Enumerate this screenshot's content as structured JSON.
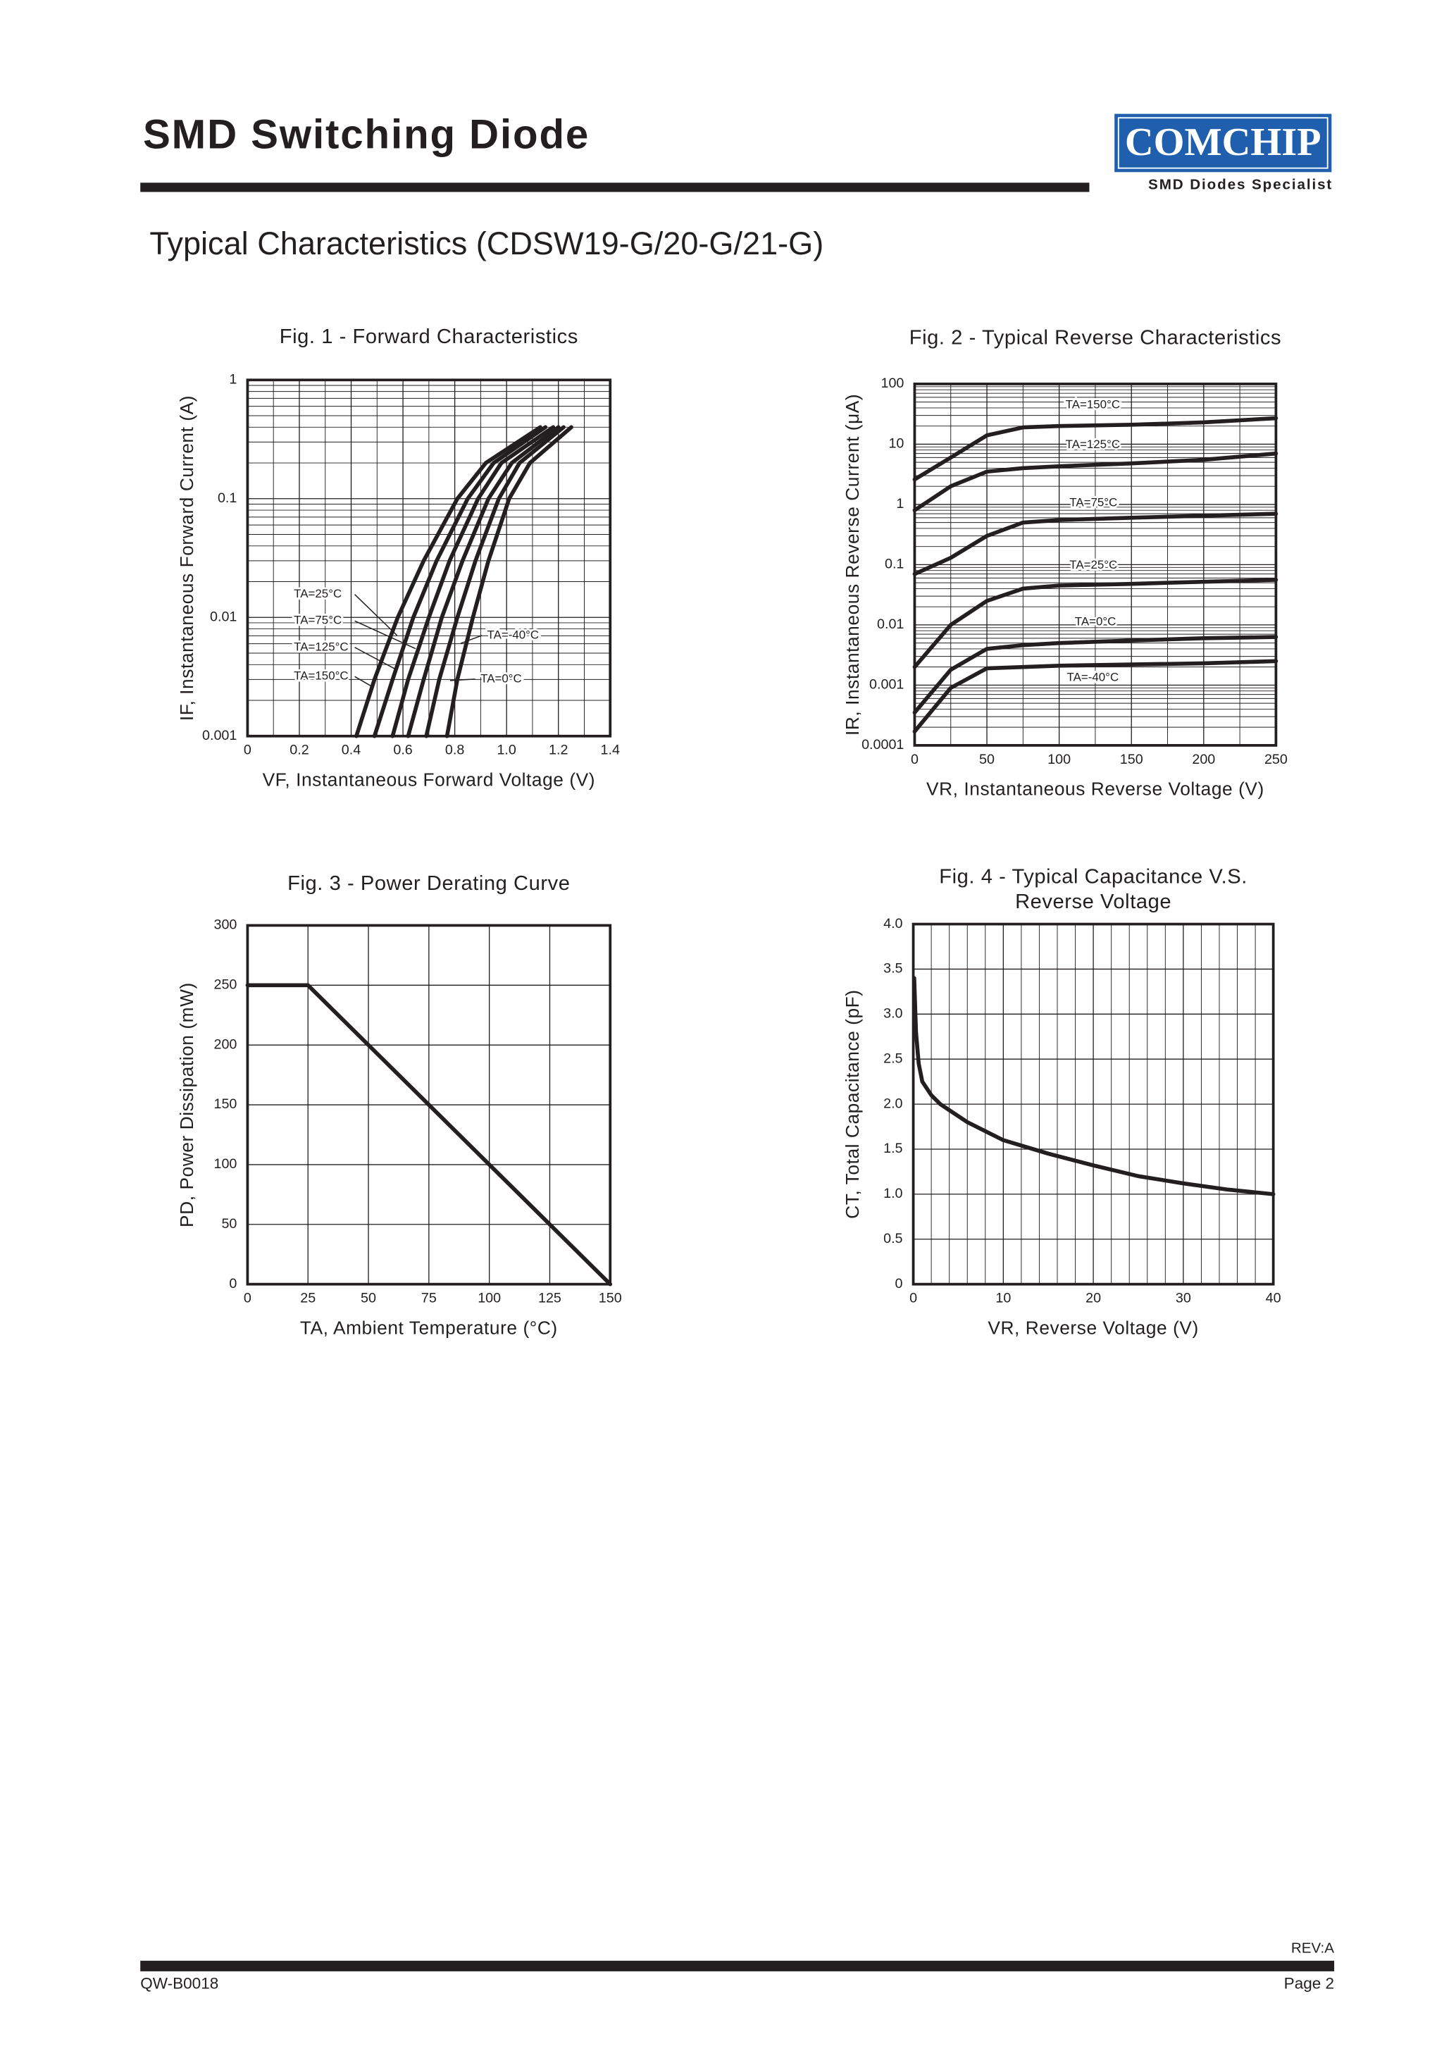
{
  "header": {
    "title": "SMD Switching Diode",
    "logo": "COMCHIP",
    "tagline": "SMD Diodes Specialist",
    "subtitle": "Typical Characteristics (CDSW19-G/20-G/21-G)"
  },
  "footer": {
    "revision": "REV:A",
    "doc_number": "QW-B0018",
    "page": "Page 2"
  },
  "chart_data": [
    {
      "type": "line",
      "title": [
        "Fig. 1 - Forward Characteristics"
      ],
      "xlabel": "VF, Instantaneous Forward Voltage (V)",
      "ylabel": "IF, Instantaneous Forward Current (A)",
      "xlim": [
        0,
        1.4
      ],
      "ylim": [
        0.001,
        1
      ],
      "ylog": true,
      "grid": true,
      "xticks": [
        0,
        0.2,
        0.4,
        0.6,
        0.8,
        {
          "value": 1,
          "label": "1.0"
        },
        1.2,
        1.4
      ],
      "yticks": [
        0.001,
        0.01,
        0.1,
        1
      ],
      "series": [
        {
          "name": "TA=25°C",
          "color": "#231f20",
          "x": [
            0.62,
            0.68,
            0.75,
            0.83,
            0.93,
            1.02,
            1.2
          ],
          "values": [
            0.001,
            0.003,
            0.01,
            0.03,
            0.1,
            0.2,
            0.4
          ]
        },
        {
          "name": "TA=75°C",
          "color": "#231f20",
          "x": [
            0.56,
            0.62,
            0.7,
            0.78,
            0.89,
            0.98,
            1.18
          ],
          "values": [
            0.001,
            0.003,
            0.01,
            0.03,
            0.1,
            0.2,
            0.4
          ]
        },
        {
          "name": "TA=125°C",
          "color": "#231f20",
          "x": [
            0.49,
            0.56,
            0.64,
            0.73,
            0.85,
            0.95,
            1.15
          ],
          "values": [
            0.001,
            0.003,
            0.01,
            0.03,
            0.1,
            0.2,
            0.4
          ]
        },
        {
          "name": "TA=150°C",
          "color": "#231f20",
          "x": [
            0.42,
            0.49,
            0.58,
            0.68,
            0.81,
            0.92,
            1.13
          ],
          "values": [
            0.001,
            0.003,
            0.01,
            0.03,
            0.1,
            0.2,
            0.4
          ]
        },
        {
          "name": "TA=-40°C",
          "color": "#231f20",
          "x": [
            0.77,
            0.81,
            0.87,
            0.93,
            1.01,
            1.09,
            1.25
          ],
          "values": [
            0.001,
            0.003,
            0.01,
            0.03,
            0.1,
            0.2,
            0.4
          ]
        },
        {
          "name": "TA=0°C",
          "color": "#231f20",
          "x": [
            0.69,
            0.74,
            0.81,
            0.88,
            0.97,
            1.05,
            1.22
          ],
          "values": [
            0.001,
            0.003,
            0.01,
            0.03,
            0.1,
            0.2,
            0.4
          ]
        }
      ]
    },
    {
      "type": "line",
      "title": [
        "Fig. 2 - Typical Reverse Characteristics"
      ],
      "xlabel": "VR, Instantaneous Reverse Voltage (V)",
      "ylabel": "IR, Instantaneous Reverse Current (μA)",
      "xlim": [
        0,
        250
      ],
      "ylim": [
        0.0001,
        100
      ],
      "ylog": true,
      "grid": true,
      "xticks": [
        0,
        50,
        100,
        150,
        200,
        250
      ],
      "yticks": [
        0.0001,
        0.001,
        0.01,
        0.1,
        1,
        10,
        100
      ],
      "series": [
        {
          "name": "TA=150°C",
          "color": "#231f20",
          "x": [
            0,
            25,
            50,
            75,
            100,
            150,
            200,
            250
          ],
          "values": [
            2.6,
            6,
            14,
            19,
            20,
            21,
            23,
            27
          ]
        },
        {
          "name": "TA=125°C",
          "color": "#231f20",
          "x": [
            0,
            25,
            50,
            75,
            100,
            150,
            200,
            250
          ],
          "values": [
            0.8,
            2,
            3.5,
            4,
            4.3,
            4.8,
            5.5,
            7
          ]
        },
        {
          "name": "TA=75°C",
          "color": "#231f20",
          "x": [
            0,
            25,
            50,
            75,
            100,
            150,
            200,
            250
          ],
          "values": [
            0.07,
            0.13,
            0.3,
            0.5,
            0.55,
            0.6,
            0.65,
            0.7
          ]
        },
        {
          "name": "TA=25°C",
          "color": "#231f20",
          "x": [
            0,
            25,
            50,
            75,
            100,
            150,
            200,
            250
          ],
          "values": [
            0.002,
            0.01,
            0.025,
            0.04,
            0.045,
            0.048,
            0.052,
            0.056
          ]
        },
        {
          "name": "TA=0°C",
          "color": "#231f20",
          "x": [
            0,
            25,
            50,
            75,
            100,
            150,
            200,
            250
          ],
          "values": [
            0.00035,
            0.0018,
            0.004,
            0.0046,
            0.005,
            0.0055,
            0.006,
            0.0063
          ]
        },
        {
          "name": "TA=-40°C",
          "color": "#231f20",
          "x": [
            0,
            25,
            50,
            75,
            100,
            150,
            200,
            250
          ],
          "values": [
            0.00017,
            0.0009,
            0.0019,
            0.002,
            0.0021,
            0.0022,
            0.0023,
            0.0025
          ]
        }
      ]
    },
    {
      "type": "line",
      "title": [
        "Fig. 3 - Power Derating Curve"
      ],
      "xlabel": "TA, Ambient Temperature (°C)",
      "ylabel": "PD, Power Dissipation (mW)",
      "xlim": [
        0,
        150
      ],
      "ylim": [
        0,
        300
      ],
      "ylog": false,
      "grid": true,
      "xticks": [
        0,
        25,
        50,
        75,
        100,
        125,
        150
      ],
      "yticks": [
        0,
        50,
        100,
        150,
        200,
        250,
        300
      ],
      "series": [
        {
          "color": "#231f20",
          "x": [
            0,
            25,
            150
          ],
          "values": [
            250,
            250,
            0
          ]
        }
      ]
    },
    {
      "type": "line",
      "title": [
        "Fig. 4 - Typical Capacitance V.S.",
        "Reverse Voltage"
      ],
      "xlabel": "VR, Reverse Voltage (V)",
      "ylabel": "CT, Total Capacitance (pF)",
      "xlim": [
        0,
        40
      ],
      "ylim": [
        0,
        4
      ],
      "ylog": false,
      "grid": true,
      "xticks": [
        0,
        10,
        20,
        30,
        40
      ],
      "yticks": [
        0,
        0.5,
        {
          "value": 1,
          "label": "1.0"
        },
        1.5,
        {
          "value": 2,
          "label": "2.0"
        },
        2.5,
        {
          "value": 3,
          "label": "3.0"
        },
        3.5,
        {
          "value": 4,
          "label": "4.0"
        }
      ],
      "series": [
        {
          "color": "#231f20",
          "x": [
            0.1,
            0.3,
            0.6,
            1,
            2,
            3,
            6,
            10,
            15,
            20,
            25,
            30,
            35,
            40
          ],
          "values": [
            3.4,
            2.8,
            2.45,
            2.25,
            2.1,
            2.0,
            1.8,
            1.6,
            1.45,
            1.32,
            1.2,
            1.12,
            1.05,
            1.0
          ]
        }
      ]
    }
  ]
}
